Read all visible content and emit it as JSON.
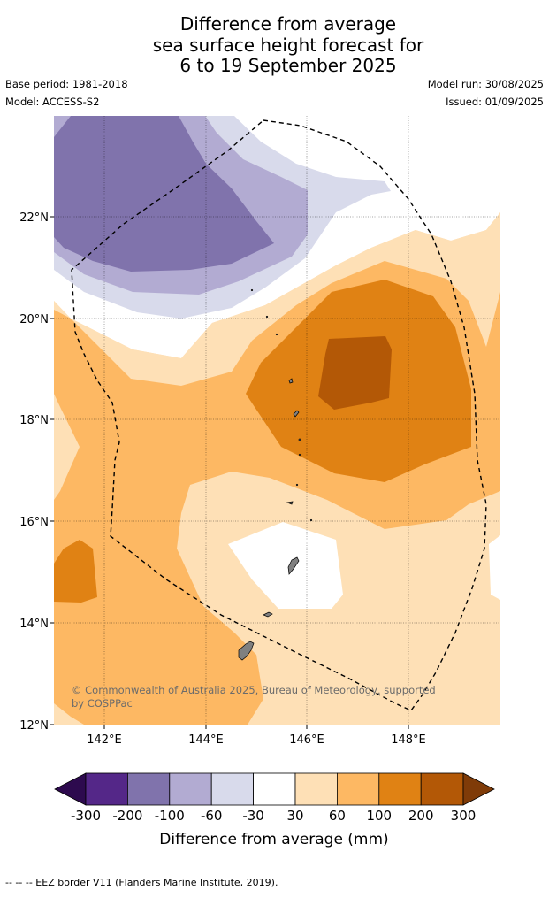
{
  "title": {
    "line1": "Difference from average",
    "line2": "sea surface height forecast for",
    "line3": "6 to 19 September 2025"
  },
  "meta": {
    "base_period": "Base period: 1981-2018",
    "model": "Model: ACCESS-S2",
    "model_run": "Model run: 30/08/2025",
    "issued": "Issued: 01/09/2025"
  },
  "map": {
    "lat_labels": [
      "22°N",
      "20°N",
      "18°N",
      "16°N",
      "14°N",
      "12°N"
    ],
    "lon_labels": [
      "142°E",
      "144°E",
      "146°E",
      "148°E"
    ],
    "lat_range": [
      12,
      24
    ],
    "lon_range": [
      141,
      149.8
    ],
    "copyright": "© Commonwealth of Australia 2025, Bureau of Meteorology, supported by COSPPac",
    "land_color": "#808080",
    "eez_style": "dashed black line"
  },
  "colorbar": {
    "label": "Difference from average (mm)",
    "tick_labels": [
      "-300",
      "-200",
      "-100",
      "-60",
      "-30",
      "30",
      "60",
      "100",
      "200",
      "300"
    ],
    "colors": {
      "below_min": "#2d0a4e",
      "b1": "#542788",
      "b2": "#8073ac",
      "b3": "#b2abd2",
      "b4": "#d8daeb",
      "b5": "#ffffff",
      "b6": "#fee0b6",
      "b7": "#fdb863",
      "b8": "#e08214",
      "b9": "#b35806",
      "above_max": "#7f3b08"
    }
  },
  "footer": {
    "legend_text": "--  --  -- EEZ border V11 (Flanders Marine Institute, 2019)."
  }
}
